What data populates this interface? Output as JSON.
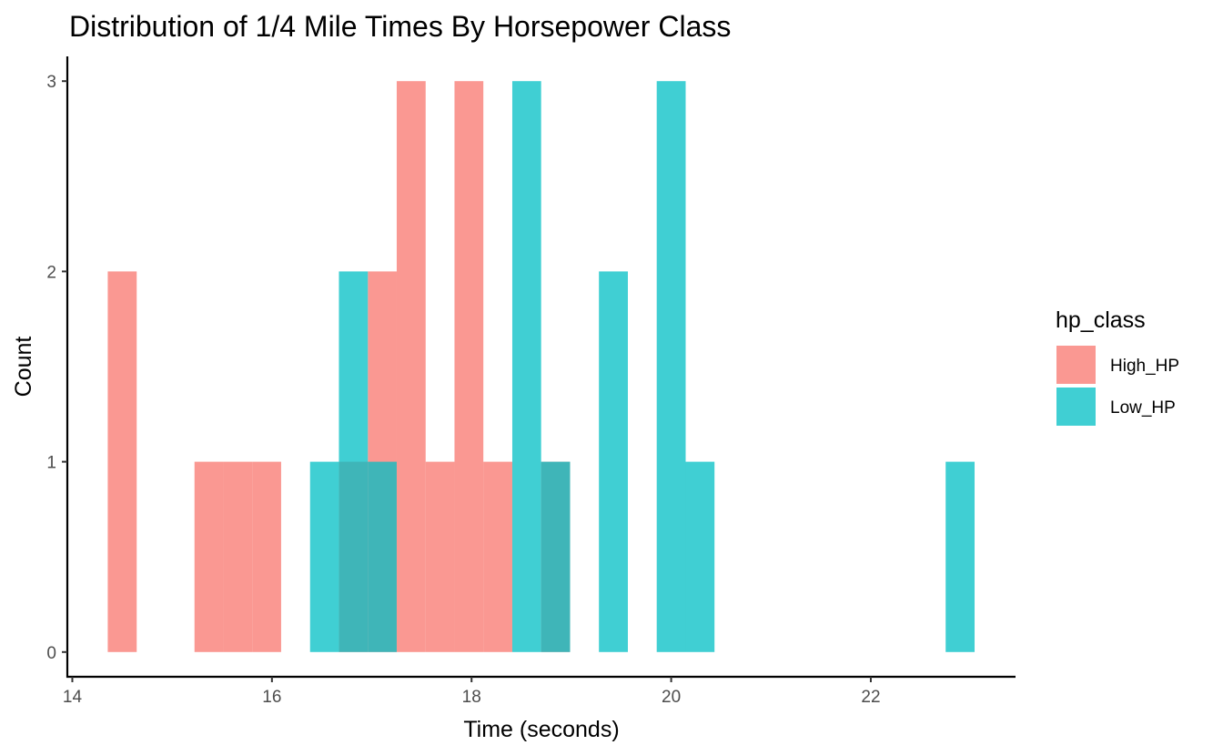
{
  "chart_data": {
    "type": "bar",
    "subtype": "histogram-overlapping",
    "title": "Distribution of 1/4 Mile Times By Horsepower Class",
    "xlabel": "Time (seconds)",
    "ylabel": "Count",
    "xlim": [
      13.95,
      23.45
    ],
    "ylim": [
      -0.13,
      3.13
    ],
    "xticks": [
      14,
      16,
      18,
      20,
      22
    ],
    "yticks": [
      0,
      1,
      2,
      3
    ],
    "grid": false,
    "legend": {
      "title": "hp_class",
      "position": "right"
    },
    "bin_width": 0.2895,
    "series": [
      {
        "name": "High_HP",
        "color": "#F8766D",
        "bins": [
          {
            "x0": 14.355,
            "x1": 14.645,
            "count": 2
          },
          {
            "x0": 15.224,
            "x1": 15.513,
            "count": 1
          },
          {
            "x0": 15.513,
            "x1": 15.803,
            "count": 1
          },
          {
            "x0": 15.803,
            "x1": 16.092,
            "count": 1
          },
          {
            "x0": 16.671,
            "x1": 16.961,
            "count": 1
          },
          {
            "x0": 16.961,
            "x1": 17.25,
            "count": 2
          },
          {
            "x0": 17.25,
            "x1": 17.54,
            "count": 3
          },
          {
            "x0": 17.54,
            "x1": 17.829,
            "count": 1
          },
          {
            "x0": 17.829,
            "x1": 18.118,
            "count": 3
          },
          {
            "x0": 18.118,
            "x1": 18.408,
            "count": 1
          },
          {
            "x0": 18.697,
            "x1": 18.987,
            "count": 1
          }
        ]
      },
      {
        "name": "Low_HP",
        "color": "#00BFC4",
        "bins": [
          {
            "x0": 16.382,
            "x1": 16.671,
            "count": 1
          },
          {
            "x0": 16.671,
            "x1": 16.961,
            "count": 2
          },
          {
            "x0": 16.961,
            "x1": 17.25,
            "count": 1
          },
          {
            "x0": 18.408,
            "x1": 18.697,
            "count": 3
          },
          {
            "x0": 18.697,
            "x1": 18.987,
            "count": 1
          },
          {
            "x0": 19.276,
            "x1": 19.566,
            "count": 2
          },
          {
            "x0": 19.855,
            "x1": 20.145,
            "count": 3
          },
          {
            "x0": 20.145,
            "x1": 20.434,
            "count": 1
          },
          {
            "x0": 22.75,
            "x1": 23.04,
            "count": 1
          }
        ]
      }
    ]
  }
}
